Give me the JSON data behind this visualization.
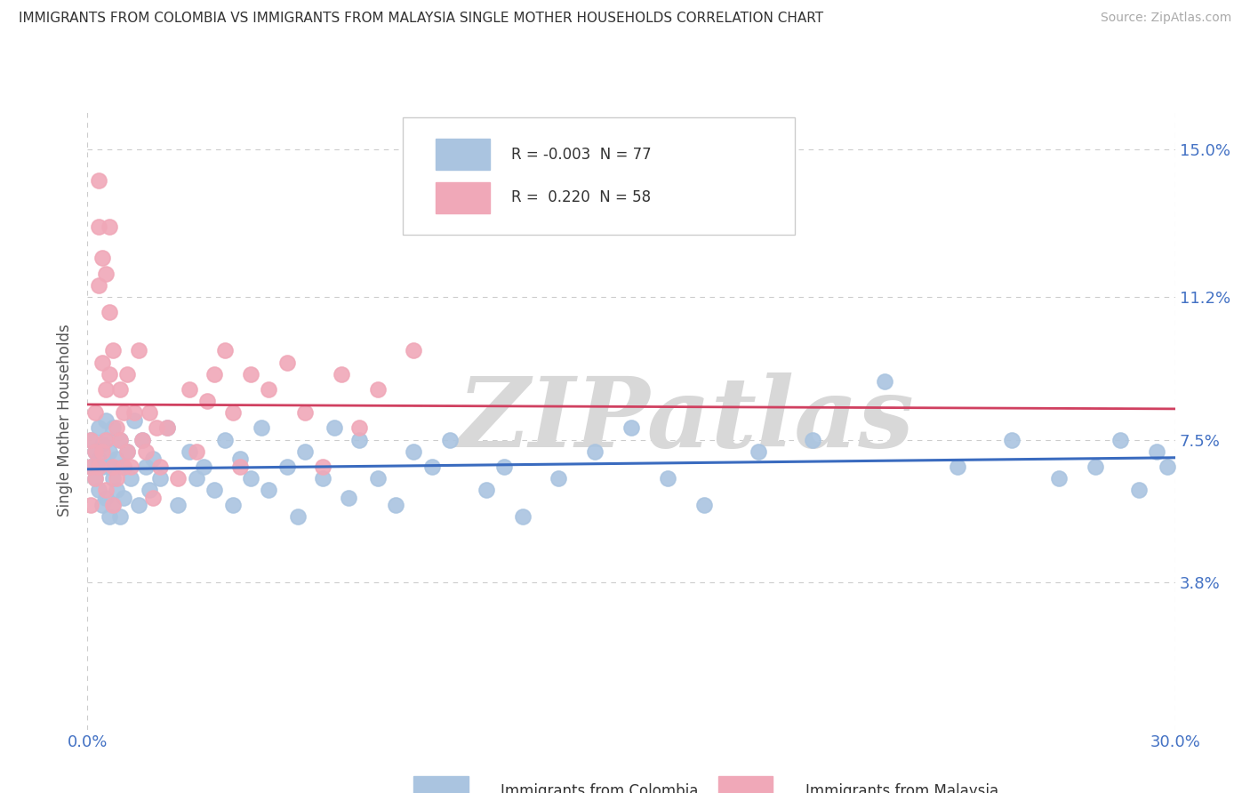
{
  "title": "IMMIGRANTS FROM COLOMBIA VS IMMIGRANTS FROM MALAYSIA SINGLE MOTHER HOUSEHOLDS CORRELATION CHART",
  "source": "Source: ZipAtlas.com",
  "xlabel_colombia": "Immigrants from Colombia",
  "xlabel_malaysia": "Immigrants from Malaysia",
  "ylabel": "Single Mother Households",
  "xlim": [
    0.0,
    0.3
  ],
  "ylim": [
    0.0,
    0.16
  ],
  "xtick_positions": [
    0.0,
    0.05,
    0.1,
    0.15,
    0.2,
    0.25,
    0.3
  ],
  "xtick_labels": [
    "0.0%",
    "",
    "",
    "",
    "",
    "",
    "30.0%"
  ],
  "ytick_positions": [
    0.0,
    0.038,
    0.075,
    0.112,
    0.15
  ],
  "ytick_labels_right": [
    "",
    "3.8%",
    "7.5%",
    "11.2%",
    "15.0%"
  ],
  "colombia_dot_color": "#aac4e0",
  "malaysia_dot_color": "#f0a8b8",
  "colombia_line_color": "#3a6bbf",
  "malaysia_line_color": "#d04060",
  "malaysia_dashed_color": "#e8a0b0",
  "grid_color": "#cccccc",
  "watermark_color": "#d8d8d8",
  "legend_R_colombia": "-0.003",
  "legend_N_colombia": "77",
  "legend_R_malaysia": "0.220",
  "legend_N_malaysia": "58",
  "colombia_points_x": [
    0.001,
    0.001,
    0.002,
    0.002,
    0.003,
    0.003,
    0.003,
    0.004,
    0.004,
    0.004,
    0.005,
    0.005,
    0.005,
    0.006,
    0.006,
    0.006,
    0.007,
    0.007,
    0.007,
    0.008,
    0.008,
    0.009,
    0.009,
    0.01,
    0.01,
    0.011,
    0.012,
    0.013,
    0.014,
    0.015,
    0.016,
    0.017,
    0.018,
    0.02,
    0.022,
    0.025,
    0.028,
    0.03,
    0.032,
    0.035,
    0.038,
    0.04,
    0.042,
    0.045,
    0.048,
    0.05,
    0.055,
    0.058,
    0.06,
    0.065,
    0.068,
    0.072,
    0.075,
    0.08,
    0.085,
    0.09,
    0.095,
    0.1,
    0.11,
    0.115,
    0.12,
    0.13,
    0.14,
    0.15,
    0.16,
    0.17,
    0.185,
    0.2,
    0.22,
    0.24,
    0.255,
    0.268,
    0.278,
    0.285,
    0.29,
    0.295,
    0.298
  ],
  "colombia_points_y": [
    0.075,
    0.068,
    0.072,
    0.065,
    0.078,
    0.062,
    0.07,
    0.058,
    0.074,
    0.068,
    0.075,
    0.06,
    0.08,
    0.068,
    0.055,
    0.072,
    0.065,
    0.058,
    0.078,
    0.07,
    0.062,
    0.075,
    0.055,
    0.068,
    0.06,
    0.072,
    0.065,
    0.08,
    0.058,
    0.075,
    0.068,
    0.062,
    0.07,
    0.065,
    0.078,
    0.058,
    0.072,
    0.065,
    0.068,
    0.062,
    0.075,
    0.058,
    0.07,
    0.065,
    0.078,
    0.062,
    0.068,
    0.055,
    0.072,
    0.065,
    0.078,
    0.06,
    0.075,
    0.065,
    0.058,
    0.072,
    0.068,
    0.075,
    0.062,
    0.068,
    0.055,
    0.065,
    0.072,
    0.078,
    0.065,
    0.058,
    0.072,
    0.075,
    0.09,
    0.068,
    0.075,
    0.065,
    0.068,
    0.075,
    0.062,
    0.072,
    0.068
  ],
  "malaysia_points_x": [
    0.001,
    0.001,
    0.001,
    0.002,
    0.002,
    0.002,
    0.003,
    0.003,
    0.003,
    0.003,
    0.004,
    0.004,
    0.004,
    0.005,
    0.005,
    0.005,
    0.005,
    0.006,
    0.006,
    0.006,
    0.007,
    0.007,
    0.007,
    0.008,
    0.008,
    0.009,
    0.009,
    0.01,
    0.01,
    0.011,
    0.011,
    0.012,
    0.013,
    0.014,
    0.015,
    0.016,
    0.017,
    0.018,
    0.019,
    0.02,
    0.022,
    0.025,
    0.028,
    0.03,
    0.033,
    0.035,
    0.038,
    0.04,
    0.042,
    0.045,
    0.05,
    0.055,
    0.06,
    0.065,
    0.07,
    0.075,
    0.08,
    0.09
  ],
  "malaysia_points_y": [
    0.075,
    0.068,
    0.058,
    0.082,
    0.065,
    0.072,
    0.142,
    0.13,
    0.115,
    0.068,
    0.122,
    0.095,
    0.072,
    0.118,
    0.088,
    0.075,
    0.062,
    0.108,
    0.092,
    0.13,
    0.068,
    0.058,
    0.098,
    0.078,
    0.065,
    0.088,
    0.075,
    0.068,
    0.082,
    0.092,
    0.072,
    0.068,
    0.082,
    0.098,
    0.075,
    0.072,
    0.082,
    0.06,
    0.078,
    0.068,
    0.078,
    0.065,
    0.088,
    0.072,
    0.085,
    0.092,
    0.098,
    0.082,
    0.068,
    0.092,
    0.088,
    0.095,
    0.082,
    0.068,
    0.092,
    0.078,
    0.088,
    0.098
  ]
}
